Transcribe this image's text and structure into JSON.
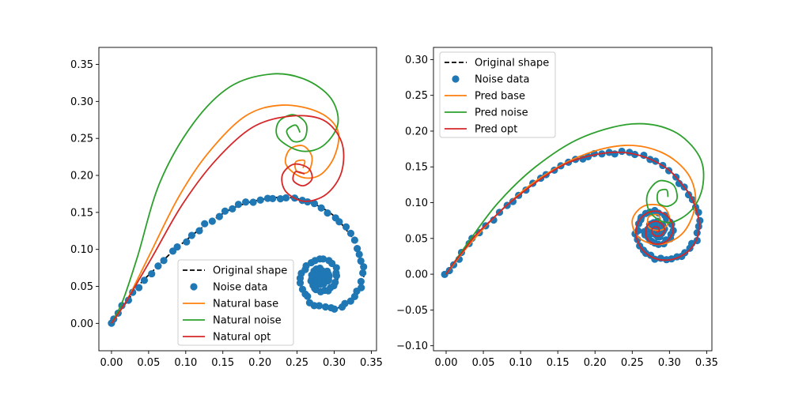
{
  "chart_data": [
    {
      "type": "line",
      "title": "",
      "xlabel": "",
      "ylabel": "",
      "xlim": [
        -0.017,
        0.357
      ],
      "ylim": [
        -0.037,
        0.373
      ],
      "xticks": [
        0.0,
        0.05,
        0.1,
        0.15,
        0.2,
        0.25,
        0.3,
        0.35
      ],
      "yticks": [
        0.0,
        0.05,
        0.1,
        0.15,
        0.2,
        0.25,
        0.3,
        0.35
      ],
      "xtick_labels": [
        "0.00",
        "0.05",
        "0.10",
        "0.15",
        "0.20",
        "0.25",
        "0.30",
        "0.35"
      ],
      "ytick_labels": [
        "0.00",
        "0.05",
        "0.10",
        "0.15",
        "0.20",
        "0.25",
        "0.30",
        "0.35"
      ],
      "legend_position": "lower-right",
      "grid": false,
      "series": [
        {
          "name": "Original shape",
          "kind": "line",
          "style": "dashed",
          "color": "#000000",
          "spiral": {
            "x0": 0.0,
            "y0": 0.0,
            "scale": 1.0,
            "turns": 4.0
          }
        },
        {
          "name": "Noise data",
          "kind": "scatter",
          "color": "#1f77b4",
          "spiral": {
            "x0": 0.0,
            "y0": 0.0,
            "scale": 1.0,
            "turns": 4.0
          }
        },
        {
          "name": "Natural base",
          "kind": "line",
          "color": "#ff7f0e",
          "points": [
            [
              0,
              0
            ],
            [
              0.02,
              0.03
            ],
            [
              0.05,
              0.09
            ],
            [
              0.09,
              0.17
            ],
            [
              0.13,
              0.23
            ],
            [
              0.18,
              0.28
            ],
            [
              0.23,
              0.295
            ],
            [
              0.28,
              0.285
            ],
            [
              0.305,
              0.26
            ],
            [
              0.3,
              0.225
            ],
            [
              0.28,
              0.2
            ],
            [
              0.255,
              0.198
            ],
            [
              0.235,
              0.215
            ],
            [
              0.24,
              0.235
            ],
            [
              0.258,
              0.24
            ],
            [
              0.27,
              0.225
            ],
            [
              0.265,
              0.205
            ],
            [
              0.25,
              0.205
            ],
            [
              0.248,
              0.218
            ],
            [
              0.26,
              0.22
            ],
            [
              0.258,
              0.21
            ]
          ]
        },
        {
          "name": "Natural noise",
          "kind": "line",
          "color": "#2ca02c",
          "points": [
            [
              0,
              0
            ],
            [
              0.015,
              0.03
            ],
            [
              0.035,
              0.09
            ],
            [
              0.065,
              0.19
            ],
            [
              0.11,
              0.27
            ],
            [
              0.16,
              0.32
            ],
            [
              0.215,
              0.337
            ],
            [
              0.26,
              0.33
            ],
            [
              0.295,
              0.305
            ],
            [
              0.305,
              0.27
            ],
            [
              0.285,
              0.24
            ],
            [
              0.255,
              0.233
            ],
            [
              0.225,
              0.25
            ],
            [
              0.225,
              0.272
            ],
            [
              0.245,
              0.282
            ],
            [
              0.262,
              0.27
            ],
            [
              0.26,
              0.25
            ],
            [
              0.245,
              0.246
            ],
            [
              0.236,
              0.26
            ],
            [
              0.248,
              0.268
            ],
            [
              0.254,
              0.258
            ]
          ]
        },
        {
          "name": "Natural opt",
          "kind": "line",
          "color": "#d62728",
          "points": [
            [
              0,
              0
            ],
            [
              0.02,
              0.03
            ],
            [
              0.055,
              0.09
            ],
            [
              0.095,
              0.16
            ],
            [
              0.14,
              0.22
            ],
            [
              0.19,
              0.265
            ],
            [
              0.24,
              0.28
            ],
            [
              0.285,
              0.275
            ],
            [
              0.31,
              0.245
            ],
            [
              0.31,
              0.205
            ],
            [
              0.29,
              0.175
            ],
            [
              0.26,
              0.165
            ],
            [
              0.235,
              0.178
            ],
            [
              0.23,
              0.2
            ],
            [
              0.245,
              0.215
            ],
            [
              0.265,
              0.21
            ],
            [
              0.27,
              0.195
            ],
            [
              0.258,
              0.186
            ],
            [
              0.245,
              0.193
            ],
            [
              0.248,
              0.205
            ],
            [
              0.26,
              0.202
            ]
          ]
        }
      ]
    },
    {
      "type": "line",
      "title": "",
      "xlabel": "",
      "ylabel": "",
      "xlim": [
        -0.017,
        0.357
      ],
      "ylim": [
        -0.107,
        0.317
      ],
      "xticks": [
        0.0,
        0.05,
        0.1,
        0.15,
        0.2,
        0.25,
        0.3,
        0.35
      ],
      "yticks": [
        -0.1,
        -0.05,
        0.0,
        0.05,
        0.1,
        0.15,
        0.2,
        0.25,
        0.3
      ],
      "xtick_labels": [
        "0.00",
        "0.05",
        "0.10",
        "0.15",
        "0.20",
        "0.25",
        "0.30",
        "0.35"
      ],
      "ytick_labels": [
        "−0.10",
        "−0.05",
        "0.00",
        "0.05",
        "0.10",
        "0.15",
        "0.20",
        "0.25",
        "0.30"
      ],
      "legend_position": "upper-left",
      "grid": false,
      "series": [
        {
          "name": "Original shape",
          "kind": "line",
          "style": "dashed",
          "color": "#000000",
          "spiral": {
            "x0": 0.0,
            "y0": 0.0,
            "scale": 1.0,
            "turns": 4.0
          }
        },
        {
          "name": "Noise data",
          "kind": "scatter",
          "color": "#1f77b4",
          "spiral": {
            "x0": 0.0,
            "y0": 0.0,
            "scale": 1.0,
            "turns": 4.0
          }
        },
        {
          "name": "Pred base",
          "kind": "line",
          "color": "#ff7f0e",
          "points": [
            [
              0,
              0
            ],
            [
              0.03,
              0.04
            ],
            [
              0.07,
              0.085
            ],
            [
              0.12,
              0.13
            ],
            [
              0.18,
              0.165
            ],
            [
              0.24,
              0.18
            ],
            [
              0.29,
              0.17
            ],
            [
              0.325,
              0.14
            ],
            [
              0.335,
              0.1
            ],
            [
              0.32,
              0.06
            ],
            [
              0.29,
              0.042
            ],
            [
              0.26,
              0.05
            ],
            [
              0.25,
              0.075
            ],
            [
              0.265,
              0.095
            ],
            [
              0.29,
              0.095
            ],
            [
              0.3,
              0.078
            ],
            [
              0.29,
              0.062
            ],
            [
              0.273,
              0.065
            ],
            [
              0.272,
              0.08
            ],
            [
              0.285,
              0.083
            ],
            [
              0.288,
              0.073
            ]
          ]
        },
        {
          "name": "Pred noise",
          "kind": "line",
          "color": "#2ca02c",
          "points": [
            [
              0,
              0
            ],
            [
              0.03,
              0.045
            ],
            [
              0.07,
              0.1
            ],
            [
              0.12,
              0.15
            ],
            [
              0.18,
              0.19
            ],
            [
              0.25,
              0.21
            ],
            [
              0.305,
              0.2
            ],
            [
              0.34,
              0.165
            ],
            [
              0.345,
              0.125
            ],
            [
              0.33,
              0.09
            ],
            [
              0.3,
              0.072
            ],
            [
              0.275,
              0.085
            ],
            [
              0.27,
              0.11
            ],
            [
              0.285,
              0.13
            ],
            [
              0.305,
              0.125
            ],
            [
              0.31,
              0.105
            ],
            [
              0.298,
              0.095
            ],
            [
              0.285,
              0.1
            ],
            [
              0.285,
              0.115
            ],
            [
              0.296,
              0.118
            ],
            [
              0.298,
              0.108
            ]
          ]
        },
        {
          "name": "Pred opt",
          "kind": "line",
          "color": "#d62728",
          "spiral": {
            "x0": 0.0,
            "y0": 0.0,
            "scale": 1.0,
            "turns": 4.0
          }
        }
      ]
    }
  ]
}
